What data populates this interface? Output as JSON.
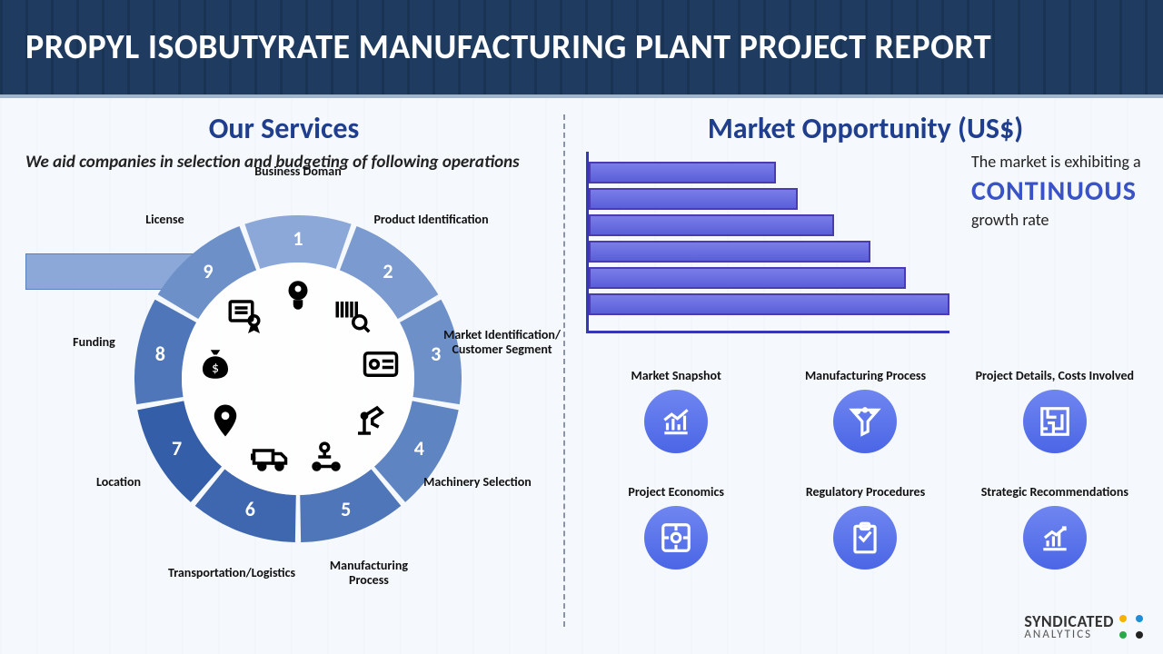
{
  "header": {
    "title": "PROPYL ISOBUTYRATE MANUFACTURING PLANT PROJECT REPORT"
  },
  "services": {
    "title": "Our Services",
    "subtitle": "We aid companies in selection and budgeting of following operations",
    "wheel": {
      "gap_deg": 2,
      "segments": [
        {
          "n": "1",
          "label": "Business Doman",
          "color": "#8ba8d8",
          "icon": "head-bulb"
        },
        {
          "n": "2",
          "label": "Product Identification",
          "color": "#7a9ad0",
          "icon": "barcode-search"
        },
        {
          "n": "3",
          "label": "Market Identification/ Customer Segment",
          "color": "#6e90c9",
          "icon": "id-card"
        },
        {
          "n": "4",
          "label": "Machinery Selection",
          "color": "#5f84c2",
          "icon": "robot-arm"
        },
        {
          "n": "5",
          "label": "Manufacturing Process",
          "color": "#4f76b9",
          "icon": "conveyor"
        },
        {
          "n": "6",
          "label": "Transportation/Logistics",
          "color": "#3e67af",
          "icon": "truck"
        },
        {
          "n": "7",
          "label": "Location",
          "color": "#345fa8",
          "icon": "pin"
        },
        {
          "n": "8",
          "label": "Funding",
          "color": "#4f76b9",
          "icon": "money-bag"
        },
        {
          "n": "9",
          "label": "License",
          "color": "#6e90c9",
          "icon": "certificate"
        }
      ]
    }
  },
  "market": {
    "title": "Market Opportunity (US$)",
    "chart": {
      "type": "bar-horizontal",
      "bar_count": 6,
      "bar_pcts": [
        52,
        58,
        68,
        78,
        88,
        100
      ],
      "bar_color": "#6a6de0",
      "bar_border": "#4a3bb0",
      "axis_color": "#3538b5"
    },
    "growth": {
      "pre": "The market is exhibiting a",
      "big": "CONTINUOUS",
      "post": "growth rate"
    },
    "tiles": [
      {
        "label": "Market Snapshot",
        "icon": "chart-up"
      },
      {
        "label": "Manufacturing Process",
        "icon": "funnel"
      },
      {
        "label": "Project Details, Costs Involved",
        "icon": "maze"
      },
      {
        "label": "Project Economics",
        "icon": "puzzle"
      },
      {
        "label": "Regulatory Procedures",
        "icon": "clipboard"
      },
      {
        "label": "Strategic Recommendations",
        "icon": "bars-arrow"
      }
    ]
  },
  "brand": {
    "name": "SYNDICATED",
    "sub": "ANALYTICS",
    "dot_colors": [
      "#f5b301",
      "#1e8fd6",
      "#2aa84a",
      "#222"
    ]
  }
}
